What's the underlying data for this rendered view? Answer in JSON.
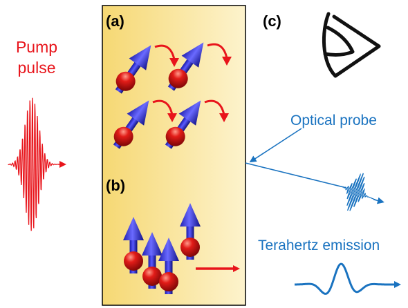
{
  "panels": {
    "a": "(a)",
    "b": "(b)",
    "c": "(c)"
  },
  "pump": {
    "line1": "Pump",
    "line2": "pulse"
  },
  "probe_label": "Optical probe",
  "thz_label": "Terahertz emission",
  "colors": {
    "pump_red": "#e8141b",
    "probe_blue": "#1a73c0",
    "spin_blue": "#2a2adf",
    "atom_red": "#d01010",
    "panel_gold": "#f6d873",
    "panel_pale": "#fdf3cd"
  },
  "icons": [
    "eye-icon",
    "spin-arrow-icon",
    "precession-arrow-icon",
    "wave-packet-icon"
  ]
}
